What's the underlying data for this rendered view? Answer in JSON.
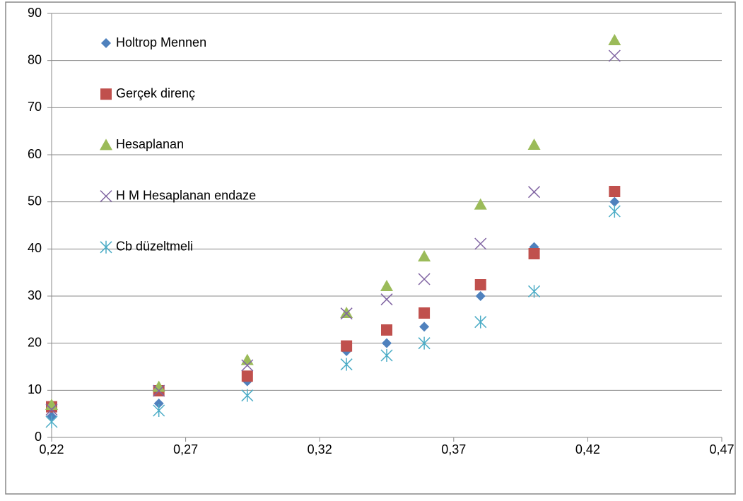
{
  "chart_data": {
    "type": "scatter",
    "x": [
      0.22,
      0.26,
      0.293,
      0.33,
      0.345,
      0.359,
      0.38,
      0.4,
      0.43
    ],
    "series": [
      {
        "name": "Holtrop Mennen",
        "color": "#4f81bd",
        "marker": "diamond",
        "values": [
          4.5,
          7.2,
          11.9,
          18.3,
          20,
          23.5,
          30,
          40.4,
          50
        ]
      },
      {
        "name": "Gerçek direnç",
        "color": "#c0504d",
        "marker": "square",
        "values": [
          6.5,
          9.9,
          13,
          19.4,
          22.8,
          26.4,
          32.4,
          39,
          52.2
        ]
      },
      {
        "name": "Hesaplanan",
        "color": "#9bbb59",
        "marker": "triangle",
        "values": [
          6.9,
          10.7,
          16.4,
          26.4,
          32.1,
          38.4,
          49.4,
          62.1,
          84.3
        ]
      },
      {
        "name": "H M Hesaplanan endaze",
        "color": "#8064a2",
        "marker": "x",
        "values": [
          5.9,
          9.9,
          15.3,
          26.3,
          29.3,
          33.6,
          41.1,
          52.1,
          81
        ]
      },
      {
        "name": "Cb düzeltmeli",
        "color": "#4bacc6",
        "marker": "star",
        "values": [
          3.3,
          5.7,
          8.9,
          15.5,
          17.4,
          20,
          24.5,
          31,
          48
        ]
      }
    ],
    "xlim": [
      0.22,
      0.47
    ],
    "xticks": [
      {
        "value": 0.22,
        "label": "0,22"
      },
      {
        "value": 0.27,
        "label": "0,27"
      },
      {
        "value": 0.32,
        "label": "0,32"
      },
      {
        "value": 0.37,
        "label": "0,37"
      },
      {
        "value": 0.42,
        "label": "0,42"
      },
      {
        "value": 0.47,
        "label": "0,47"
      }
    ],
    "ylim": [
      0,
      90
    ],
    "yticks": [
      0,
      10,
      20,
      30,
      40,
      50,
      60,
      70,
      80,
      90
    ],
    "grid": true,
    "legend": "top-left"
  }
}
